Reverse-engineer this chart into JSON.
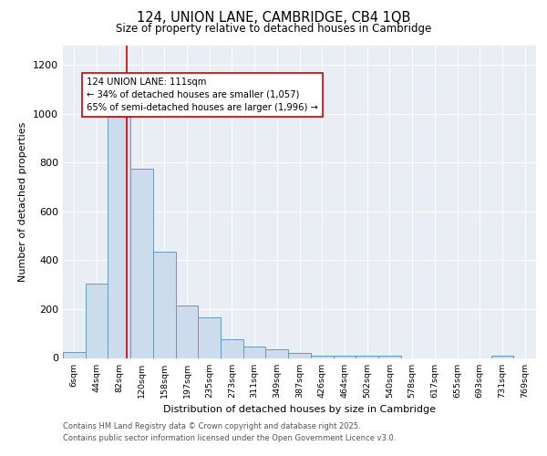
{
  "title1": "124, UNION LANE, CAMBRIDGE, CB4 1QB",
  "title2": "Size of property relative to detached houses in Cambridge",
  "xlabel": "Distribution of detached houses by size in Cambridge",
  "ylabel": "Number of detached properties",
  "bar_labels": [
    "6sqm",
    "44sqm",
    "82sqm",
    "120sqm",
    "158sqm",
    "197sqm",
    "235sqm",
    "273sqm",
    "311sqm",
    "349sqm",
    "387sqm",
    "426sqm",
    "464sqm",
    "502sqm",
    "540sqm",
    "578sqm",
    "617sqm",
    "655sqm",
    "693sqm",
    "731sqm",
    "769sqm"
  ],
  "bar_heights": [
    25,
    305,
    990,
    775,
    435,
    215,
    165,
    75,
    47,
    35,
    20,
    10,
    10,
    10,
    8,
    0,
    0,
    0,
    0,
    10,
    0
  ],
  "bar_color": "#ccdcec",
  "bar_edge_color": "#6699bb",
  "vline_color": "#cc0000",
  "annotation_text": "124 UNION LANE: 111sqm\n← 34% of detached houses are smaller (1,057)\n65% of semi-detached houses are larger (1,996) →",
  "annotation_box_color": "white",
  "annotation_box_edgecolor": "#cc0000",
  "ylim": [
    0,
    1280
  ],
  "yticks": [
    0,
    200,
    400,
    600,
    800,
    1000,
    1200
  ],
  "background_color": "#e8eef4",
  "footer1": "Contains HM Land Registry data © Crown copyright and database right 2025.",
  "footer2": "Contains public sector information licensed under the Open Government Licence v3.0."
}
